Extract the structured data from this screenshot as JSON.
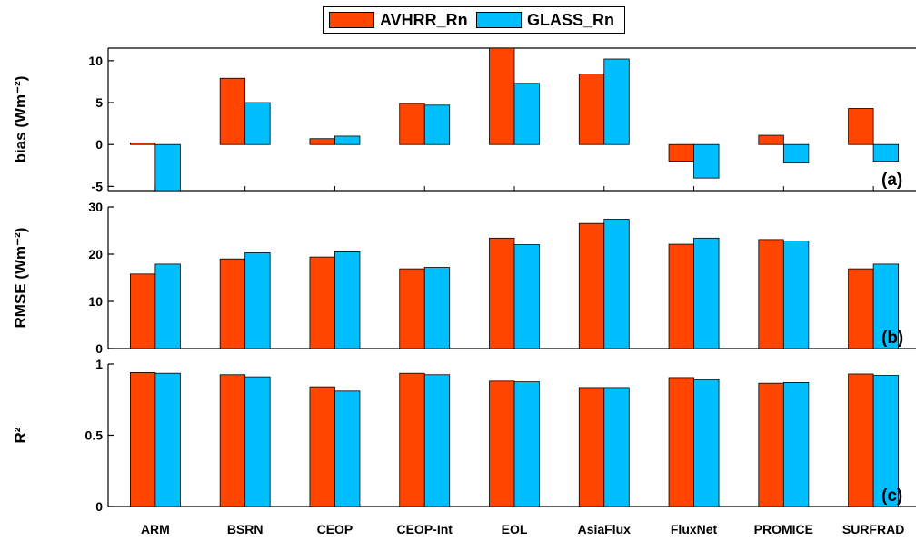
{
  "legend": {
    "items": [
      {
        "label": "AVHRR_Rn",
        "color": "#ff4500"
      },
      {
        "label": "GLASS_Rn",
        "color": "#00bfff"
      }
    ]
  },
  "chart_data": [
    {
      "type": "bar",
      "panel_label": "(a)",
      "ylabel": "bias (Wm⁻²)",
      "ylim": [
        -5.5,
        11.5
      ],
      "yticks": [
        -5,
        0,
        5,
        10
      ],
      "categories": [
        "ARM",
        "BSRN",
        "CEOP",
        "CEOP-Int",
        "EOL",
        "AsiaFlux",
        "FluxNet",
        "PROMICE",
        "SURFRAD"
      ],
      "series": [
        {
          "name": "AVHRR_Rn",
          "values": [
            0.2,
            7.9,
            0.7,
            4.9,
            11.5,
            8.4,
            -2.0,
            1.1,
            4.3
          ]
        },
        {
          "name": "GLASS_Rn",
          "values": [
            -5.5,
            5.0,
            1.0,
            4.7,
            7.3,
            10.2,
            -4.0,
            -2.2,
            -2.0
          ]
        }
      ]
    },
    {
      "type": "bar",
      "panel_label": "(b)",
      "ylabel": "RMSE (Wm⁻²)",
      "ylim": [
        0,
        30
      ],
      "yticks": [
        0,
        10,
        20,
        30
      ],
      "categories": [
        "ARM",
        "BSRN",
        "CEOP",
        "CEOP-Int",
        "EOL",
        "AsiaFlux",
        "FluxNet",
        "PROMICE",
        "SURFRAD"
      ],
      "series": [
        {
          "name": "AVHRR_Rn",
          "values": [
            15.8,
            19.0,
            19.4,
            16.9,
            23.4,
            26.5,
            22.1,
            23.1,
            16.9
          ]
        },
        {
          "name": "GLASS_Rn",
          "values": [
            17.9,
            20.3,
            20.5,
            17.2,
            22.0,
            27.4,
            23.4,
            22.8,
            17.9
          ]
        }
      ]
    },
    {
      "type": "bar",
      "panel_label": "(c)",
      "ylabel": "R²",
      "ylim": [
        0,
        1
      ],
      "yticks": [
        0,
        0.5,
        1
      ],
      "ytick_labels": [
        "0",
        "0.5",
        "1"
      ],
      "categories": [
        "ARM",
        "BSRN",
        "CEOP",
        "CEOP-Int",
        "EOL",
        "AsiaFlux",
        "FluxNet",
        "PROMICE",
        "SURFRAD"
      ],
      "series": [
        {
          "name": "AVHRR_Rn",
          "values": [
            0.94,
            0.925,
            0.84,
            0.935,
            0.88,
            0.835,
            0.905,
            0.865,
            0.93
          ]
        },
        {
          "name": "GLASS_Rn",
          "values": [
            0.935,
            0.91,
            0.81,
            0.925,
            0.875,
            0.835,
            0.89,
            0.87,
            0.92
          ]
        }
      ]
    }
  ]
}
